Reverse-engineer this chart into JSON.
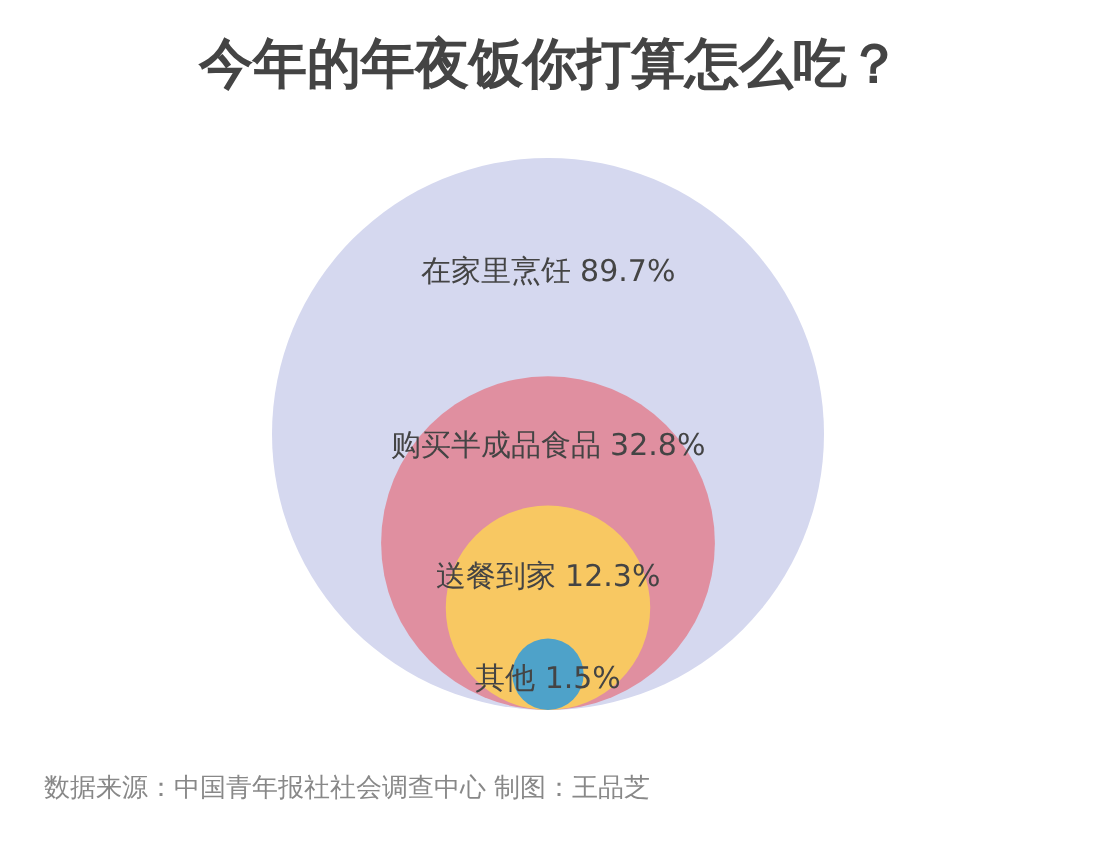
{
  "chart_data": {
    "type": "other",
    "title": "今年的年夜饭你打算怎么吃？",
    "categories": [
      "在家里烹饪",
      "购买半成品食品",
      "送餐到家",
      "其他"
    ],
    "values": [
      89.7,
      32.8,
      12.3,
      1.5
    ],
    "value_labels": [
      "89.7%",
      "32.8%",
      "12.3%",
      "1.5%"
    ],
    "colors": [
      "#d5d8ef",
      "#e08fa0",
      "#f8c862",
      "#4ea2c9"
    ],
    "annotations": [
      "数据来源：中国青年报社社会调查中心 制图：王品芝"
    ]
  }
}
